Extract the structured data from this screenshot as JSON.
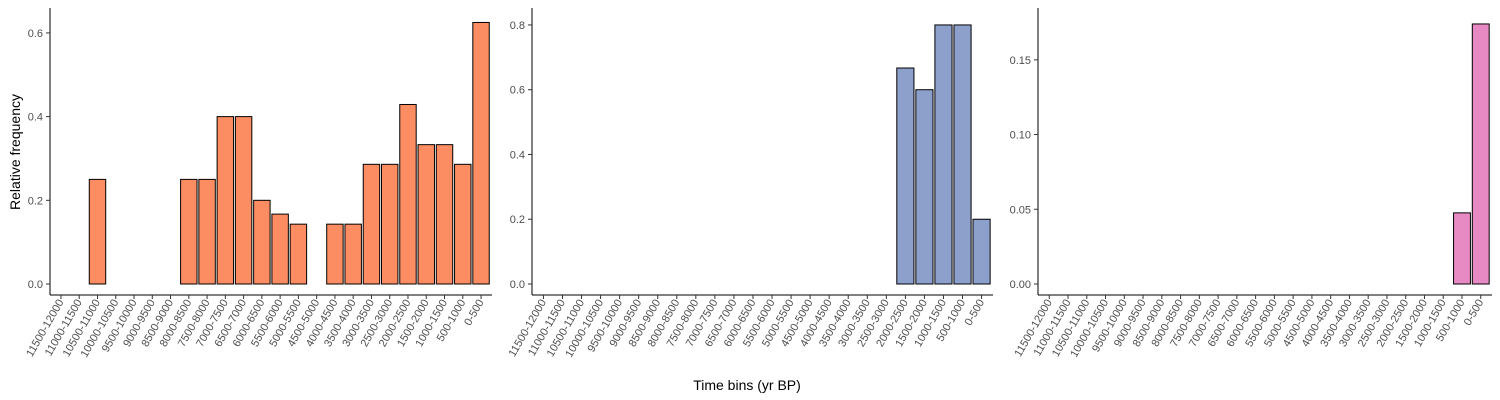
{
  "figure": {
    "ylabel": "Relative frequency",
    "xlabel": "Time bins (yr BP)"
  },
  "chart_data": [
    {
      "type": "bar",
      "color": "#FC8D62",
      "categories": [
        "11500-12000",
        "11000-11500",
        "10500-11000",
        "10000-10500",
        "9500-10000",
        "9000-9500",
        "8500-9000",
        "8000-8500",
        "7500-8000",
        "7000-7500",
        "6500-7000",
        "6000-6500",
        "5500-6000",
        "5000-5500",
        "4500-5000",
        "4000-4500",
        "3500-4000",
        "3000-3500",
        "2500-3000",
        "2000-2500",
        "1500-2000",
        "1000-1500",
        "500-1000",
        "0-500"
      ],
      "values": [
        0,
        0,
        0.25,
        0,
        0,
        0,
        0,
        0.25,
        0.25,
        0.4,
        0.4,
        0.2,
        0.167,
        0.143,
        0,
        0.143,
        0.143,
        0.286,
        0.286,
        0.429,
        0.333,
        0.333,
        0.286,
        0.625
      ],
      "ylim": [
        0,
        0.65
      ],
      "yticks": [
        "0.0",
        "0.2",
        "0.4",
        "0.6"
      ]
    },
    {
      "type": "bar",
      "color": "#8DA0CB",
      "categories": [
        "11500-12000",
        "11000-11500",
        "10500-11000",
        "10000-10500",
        "9500-10000",
        "9000-9500",
        "8500-9000",
        "8000-8500",
        "7500-8000",
        "7000-7500",
        "6500-7000",
        "6000-6500",
        "5500-6000",
        "5000-5500",
        "4500-5000",
        "4000-4500",
        "3500-4000",
        "3000-3500",
        "2500-3000",
        "2000-2500",
        "1500-2000",
        "1000-1500",
        "500-1000",
        "0-500"
      ],
      "values": [
        0,
        0,
        0,
        0,
        0,
        0,
        0,
        0,
        0,
        0,
        0,
        0,
        0,
        0,
        0,
        0,
        0,
        0,
        0,
        0.667,
        0.6,
        0.8,
        0.8,
        0.2
      ],
      "ylim": [
        0,
        0.84
      ],
      "yticks": [
        "0.0",
        "0.2",
        "0.4",
        "0.6",
        "0.8"
      ]
    },
    {
      "type": "bar",
      "color": "#E78AC3",
      "categories": [
        "11500-12000",
        "11000-11500",
        "10500-11000",
        "10000-10500",
        "9500-10000",
        "9000-9500",
        "8500-9000",
        "8000-8500",
        "7500-8000",
        "7000-7500",
        "6500-7000",
        "6000-6500",
        "5500-6000",
        "5000-5500",
        "4500-5000",
        "4000-4500",
        "3500-4000",
        "3000-3500",
        "2500-3000",
        "2000-2500",
        "1500-2000",
        "1000-1500",
        "500-1000",
        "0-500"
      ],
      "values": [
        0,
        0,
        0,
        0,
        0,
        0,
        0,
        0,
        0,
        0,
        0,
        0,
        0,
        0,
        0,
        0,
        0,
        0,
        0,
        0,
        0,
        0,
        0.0476,
        0.174
      ],
      "ylim": [
        0,
        0.182
      ],
      "yticks": [
        "0.00",
        "0.05",
        "0.10",
        "0.15"
      ]
    }
  ]
}
